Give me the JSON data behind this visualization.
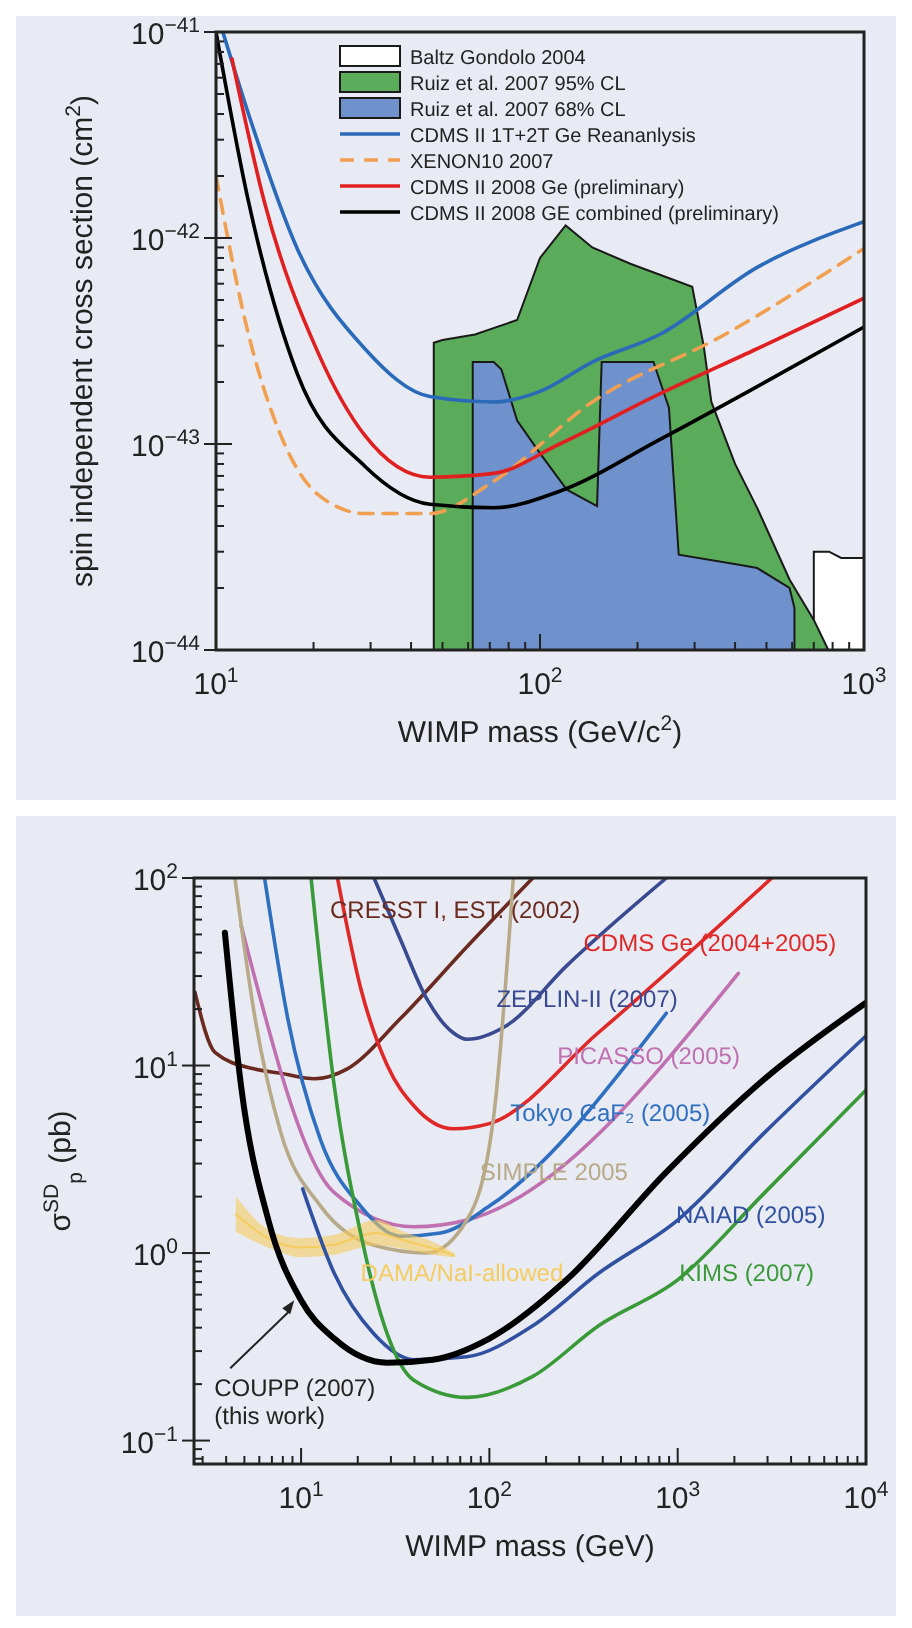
{
  "chart_data": [
    {
      "type": "line",
      "xlabel": "WIMP mass (GeV/c$^{2}$)",
      "ylabel": "spin independent cross section (cm$^{2}$)",
      "log": "xy",
      "xlim": [
        10,
        1000
      ],
      "ylim": [
        1e-44,
        1e-41
      ],
      "xticks": [
        {
          "value": 10,
          "label": "10$^{1}$"
        },
        {
          "value": 100,
          "label": "10$^{2}$"
        },
        {
          "value": 1000,
          "label": "10$^{3}$"
        }
      ],
      "yticks": [
        {
          "value": 1e-44,
          "label": "10$^{−44}$"
        },
        {
          "value": 1e-43,
          "label": "10$^{−43}$"
        },
        {
          "value": 1e-42,
          "label": "10$^{−42}$"
        },
        {
          "value": 1e-41,
          "label": "10$^{−41}$"
        }
      ],
      "legend": "top right",
      "grid": false,
      "series": [
        {
          "name": "Baltz Gondolo 2004",
          "type": "area",
          "color": "#ffffff",
          "x": [
            700,
            780,
            850,
            1000
          ],
          "values": [
            3e-44,
            3e-44,
            2.8e-44,
            2.8e-44
          ]
        },
        {
          "name": "Ruiz et al. 2007 95% CL",
          "type": "area",
          "color": "#5aab5a",
          "x": [
            47,
            50,
            63,
            85,
            100,
            120,
            145,
            190,
            295,
            320,
            338,
            400,
            468,
            589,
            700,
            776
          ],
          "values": [
            3.1e-43,
            3.2e-43,
            3.4e-43,
            4e-43,
            8e-43,
            1.15e-42,
            9e-43,
            7.5e-43,
            5.8e-43,
            3e-43,
            1.6e-43,
            8e-44,
            4.9e-44,
            2.2e-44,
            1.4e-44,
            1e-44
          ]
        },
        {
          "name": "Ruiz et al. 2007 68% CL",
          "type": "area",
          "color": "#6f92cc",
          "x": [
            62,
            72,
            76,
            85,
            100,
            121,
            150,
            155,
            224,
            250,
            268,
            407,
            468,
            589,
            610
          ],
          "values": [
            2.5e-43,
            2.5e-43,
            2.3e-43,
            1.3e-43,
            9e-44,
            6e-44,
            5e-44,
            2.5e-43,
            2.5e-43,
            1.5e-43,
            2.9e-44,
            2.6e-44,
            2.5e-44,
            2e-44,
            1.6e-44
          ]
        },
        {
          "name": "CDMS II 1T+2T Ge Reananlysis",
          "color": "#2a6ab8",
          "x": [
            10.5,
            12.6,
            17.8,
            28.8,
            45.7,
            72,
            100,
            145,
            234,
            468,
            1000
          ],
          "values": [
            1e-41,
            4e-42,
            8.9e-43,
            2.9e-43,
            1.7e-43,
            1.6e-43,
            1.8e-43,
            2.5e-43,
            3.4e-43,
            7.2e-43,
            1.2e-42
          ]
        },
        {
          "name": "XENON10 2007",
          "color": "#f0a050",
          "line_style": "dashed",
          "x": [
            10,
            12.6,
            15.5,
            20.6,
            28.8,
            45.7,
            72,
            145,
            372,
            1000
          ],
          "values": [
            2e-42,
            3.4e-43,
            1.2e-43,
            5.7e-44,
            4.6e-44,
            4.6e-44,
            6.6e-44,
            1.6e-43,
            3.4e-43,
            8.9e-43
          ]
        },
        {
          "name": "CDMS II 2008 Ge (preliminary)",
          "color": "#e02020",
          "x": [
            11.2,
            14.1,
            20.6,
            28.8,
            45.7,
            72,
            115,
            234,
            468,
            1000
          ],
          "values": [
            7.4e-42,
            1.5e-42,
            2.8e-43,
            1.1e-43,
            6.9e-44,
            7.2e-44,
            1e-43,
            1.75e-43,
            2.9e-43,
            5.1e-43
          ]
        },
        {
          "name": "CDMS II 2008 GE combined (preliminary)",
          "color": "#000000",
          "x": [
            10,
            12.6,
            17.8,
            28.8,
            45.7,
            72,
            115,
            234,
            468,
            1000
          ],
          "values": [
            1e-41,
            1.5e-42,
            2.2e-43,
            7.8e-44,
            5.1e-44,
            4.9e-44,
            5.9e-44,
            1.05e-43,
            1.9e-43,
            3.7e-43
          ]
        }
      ]
    },
    {
      "type": "line",
      "xlabel": "WIMP mass (GeV)",
      "ylabel": "σ$^{SD}$$_{p}$ (pb)",
      "log": "xy",
      "xlim": [
        2.7,
        10000
      ],
      "ylim": [
        0.075,
        100
      ],
      "xticks": [
        {
          "value": 10,
          "label": "10$^{1}$"
        },
        {
          "value": 100,
          "label": "10$^{2}$"
        },
        {
          "value": 1000,
          "label": "10$^{3}$"
        },
        {
          "value": 10000,
          "label": "10$^{4}$"
        }
      ],
      "yticks": [
        {
          "value": 0.1,
          "label": "10$^{−1}$"
        },
        {
          "value": 1,
          "label": "10$^{0}$"
        },
        {
          "value": 10,
          "label": "10$^{1}$"
        },
        {
          "value": 100,
          "label": "10$^{2}$"
        }
      ],
      "grid": false,
      "series": [
        {
          "color": "#6b2a20",
          "x": [
            2.73,
            3.5,
            5.6,
            7.8,
            11.8,
            17.6,
            33.7,
            76,
            170
          ],
          "values": [
            24.6,
            11.7,
            9.6,
            9.1,
            8.5,
            9.6,
            17.8,
            43,
            100
          ]
        },
        {
          "color": "#e02828",
          "x": [
            15.6,
            20.7,
            28.7,
            39.7,
            64,
            100,
            380,
            3160
          ],
          "values": [
            100,
            26,
            10,
            6.1,
            4.6,
            4.9,
            15,
            100
          ]
        },
        {
          "color": "#3a4a90",
          "x": [
            24.4,
            33.7,
            46.7,
            64,
            76,
            123,
            257,
            870
          ],
          "values": [
            100,
            47,
            22.5,
            15,
            13.8,
            16.3,
            34,
            100
          ]
        },
        {
          "color": "#c070b0",
          "x": [
            4.8,
            15,
            39.7,
            76,
            2100
          ],
          "values": [
            56,
            2.1,
            1.38,
            1.5,
            31
          ]
        },
        {
          "color": "#2f6fc0",
          "x": [
            6.4,
            8.5,
            12.7,
            20.7,
            33.7,
            55,
            100,
            870
          ],
          "values": [
            100,
            17.8,
            4,
            1.78,
            1.23,
            1.28,
            1.78,
            19
          ]
        },
        {
          "color": "#b8aa88",
          "x": [
            4.45,
            5.7,
            7.8,
            12.7,
            24.4,
            46.7,
            76,
            105,
            134
          ],
          "values": [
            100,
            17.8,
            4.4,
            1.78,
            1.1,
            1,
            1.5,
            5.2,
            100
          ]
        },
        {
          "color": "#f5cc60",
          "x": [
            4.5,
            7,
            10,
            15,
            25,
            35,
            50,
            65
          ],
          "values": [
            1.61,
            1.17,
            1.07,
            1.11,
            1.28,
            1.17,
            1.06,
            0.97
          ],
          "upper": [
            2,
            1.3,
            1.2,
            1.25,
            1.5,
            1.3,
            1.15,
            1
          ],
          "lower": [
            1.3,
            1.05,
            0.95,
            0.98,
            1.1,
            1.05,
            0.98,
            0.95
          ]
        },
        {
          "color": "#3050a0",
          "x": [
            10.2,
            15,
            24.4,
            39.7,
            76,
            170,
            380,
            1000,
            2900,
            10000
          ],
          "values": [
            2.2,
            0.78,
            0.37,
            0.27,
            0.28,
            0.41,
            0.78,
            1.5,
            4.4,
            14.4
          ]
        },
        {
          "color": "#3a9a3a",
          "x": [
            11.3,
            15,
            20.7,
            28.7,
            39.7,
            76,
            170,
            380,
            1000,
            2900,
            10000
          ],
          "values": [
            100,
            7.8,
            1.28,
            0.37,
            0.21,
            0.17,
            0.22,
            0.41,
            0.72,
            2.1,
            7.4
          ]
        },
        {
          "color": "#000000",
          "x": [
            3.94,
            4.8,
            6.7,
            10,
            15,
            28.7,
            50,
            100,
            257,
            870,
            2900,
            10000
          ],
          "values": [
            51,
            7.8,
            1.5,
            0.56,
            0.35,
            0.26,
            0.27,
            0.35,
            0.72,
            2.7,
            8.5,
            21.6
          ]
        }
      ],
      "annotations": [
        "CRESST I, EST. (2002)",
        {
          "text": "CDMS Ge (2004+2005)",
          "x": 316,
          "y": 45
        },
        {
          "text": "ZEPLIN-II (2007)",
          "x": 109,
          "y": 22.6
        },
        {
          "text": "PICASSO (2005)",
          "x": 229,
          "y": 11.2
        },
        {
          "text": "Tokyo CaF₂ (2005)",
          "x": 129,
          "y": 5.6
        },
        {
          "text": "SIMPLE 2005",
          "x": 89,
          "y": 2.7
        },
        {
          "text": "DAMA/NaI-allowed",
          "x": 20.7,
          "y": 0.78
        },
        {
          "text": "NAIAD (2005)",
          "x": 980,
          "y": 1.6
        },
        {
          "text": "KIMS (2007)",
          "x": 1020,
          "y": 0.78
        },
        {
          "text": "COUPP (2007)\n(this work)",
          "x": 9.2,
          "y": 0.56
        }
      ]
    }
  ]
}
